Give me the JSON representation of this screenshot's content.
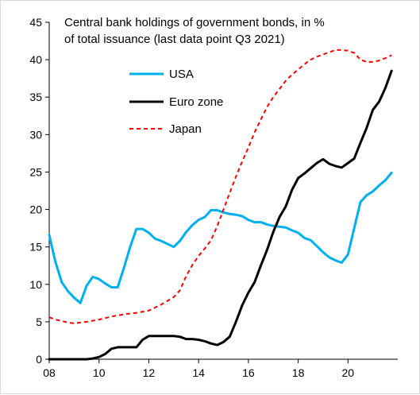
{
  "chart_data": {
    "type": "line",
    "title_lines": [
      "Central bank holdings of government bonds, in %",
      "of total issuance (last data point Q3 2021)"
    ],
    "xlim": [
      2008,
      2022
    ],
    "ylim": [
      0,
      45
    ],
    "x_ticks": [
      2008,
      2010,
      2012,
      2014,
      2016,
      2018,
      2020
    ],
    "x_tick_labels": [
      "08",
      "10",
      "12",
      "14",
      "16",
      "18",
      "20"
    ],
    "y_ticks": [
      0,
      5,
      10,
      15,
      20,
      25,
      30,
      35,
      40,
      45
    ],
    "y_tick_labels": [
      "0",
      "5",
      "10",
      "15",
      "20",
      "25",
      "30",
      "35",
      "40",
      "45"
    ],
    "grid": false,
    "legend_position": "top-left",
    "series": [
      {
        "name": "USA",
        "color": "#00b0f0",
        "style": "solid",
        "points": [
          [
            2008.0,
            16.6
          ],
          [
            2008.25,
            13.0
          ],
          [
            2008.5,
            10.3
          ],
          [
            2008.75,
            9.1
          ],
          [
            2009.0,
            8.2
          ],
          [
            2009.25,
            7.5
          ],
          [
            2009.5,
            9.8
          ],
          [
            2009.75,
            11.0
          ],
          [
            2010.0,
            10.7
          ],
          [
            2010.25,
            10.1
          ],
          [
            2010.5,
            9.6
          ],
          [
            2010.75,
            9.6
          ],
          [
            2011.0,
            12.2
          ],
          [
            2011.25,
            15.0
          ],
          [
            2011.5,
            17.4
          ],
          [
            2011.75,
            17.4
          ],
          [
            2012.0,
            16.9
          ],
          [
            2012.25,
            16.1
          ],
          [
            2012.5,
            15.8
          ],
          [
            2012.75,
            15.4
          ],
          [
            2013.0,
            15.0
          ],
          [
            2013.25,
            15.8
          ],
          [
            2013.5,
            17.0
          ],
          [
            2013.75,
            17.9
          ],
          [
            2014.0,
            18.6
          ],
          [
            2014.25,
            19.0
          ],
          [
            2014.5,
            19.9
          ],
          [
            2014.75,
            19.9
          ],
          [
            2015.0,
            19.6
          ],
          [
            2015.25,
            19.4
          ],
          [
            2015.5,
            19.3
          ],
          [
            2015.75,
            19.1
          ],
          [
            2016.0,
            18.6
          ],
          [
            2016.25,
            18.3
          ],
          [
            2016.5,
            18.3
          ],
          [
            2016.75,
            18.0
          ],
          [
            2017.0,
            17.8
          ],
          [
            2017.25,
            17.7
          ],
          [
            2017.5,
            17.6
          ],
          [
            2017.75,
            17.2
          ],
          [
            2018.0,
            16.9
          ],
          [
            2018.25,
            16.2
          ],
          [
            2018.5,
            15.9
          ],
          [
            2018.75,
            15.1
          ],
          [
            2019.0,
            14.3
          ],
          [
            2019.25,
            13.6
          ],
          [
            2019.5,
            13.2
          ],
          [
            2019.75,
            12.9
          ],
          [
            2020.0,
            14.0
          ],
          [
            2020.25,
            17.5
          ],
          [
            2020.5,
            21.0
          ],
          [
            2020.75,
            21.9
          ],
          [
            2021.0,
            22.4
          ],
          [
            2021.25,
            23.2
          ],
          [
            2021.5,
            23.9
          ],
          [
            2021.75,
            24.9
          ]
        ]
      },
      {
        "name": "Euro zone",
        "color": "#000000",
        "style": "solid",
        "points": [
          [
            2008.0,
            0.0
          ],
          [
            2008.5,
            0.0
          ],
          [
            2009.0,
            0.0
          ],
          [
            2009.5,
            0.0
          ],
          [
            2009.75,
            0.1
          ],
          [
            2010.0,
            0.3
          ],
          [
            2010.25,
            0.7
          ],
          [
            2010.5,
            1.4
          ],
          [
            2010.75,
            1.6
          ],
          [
            2011.0,
            1.6
          ],
          [
            2011.25,
            1.6
          ],
          [
            2011.5,
            1.6
          ],
          [
            2011.75,
            2.6
          ],
          [
            2012.0,
            3.1
          ],
          [
            2012.25,
            3.1
          ],
          [
            2012.5,
            3.1
          ],
          [
            2012.75,
            3.1
          ],
          [
            2013.0,
            3.1
          ],
          [
            2013.25,
            3.0
          ],
          [
            2013.5,
            2.7
          ],
          [
            2013.75,
            2.7
          ],
          [
            2014.0,
            2.6
          ],
          [
            2014.25,
            2.4
          ],
          [
            2014.5,
            2.1
          ],
          [
            2014.75,
            1.9
          ],
          [
            2015.0,
            2.3
          ],
          [
            2015.25,
            3.0
          ],
          [
            2015.5,
            5.0
          ],
          [
            2015.75,
            7.2
          ],
          [
            2016.0,
            8.9
          ],
          [
            2016.25,
            10.3
          ],
          [
            2016.5,
            12.5
          ],
          [
            2016.75,
            14.6
          ],
          [
            2017.0,
            17.0
          ],
          [
            2017.25,
            19.0
          ],
          [
            2017.5,
            20.4
          ],
          [
            2017.75,
            22.6
          ],
          [
            2018.0,
            24.2
          ],
          [
            2018.25,
            24.8
          ],
          [
            2018.5,
            25.5
          ],
          [
            2018.75,
            26.2
          ],
          [
            2019.0,
            26.7
          ],
          [
            2019.25,
            26.1
          ],
          [
            2019.5,
            25.8
          ],
          [
            2019.75,
            25.6
          ],
          [
            2020.0,
            26.2
          ],
          [
            2020.25,
            26.8
          ],
          [
            2020.5,
            28.9
          ],
          [
            2020.75,
            30.9
          ],
          [
            2021.0,
            33.3
          ],
          [
            2021.25,
            34.4
          ],
          [
            2021.5,
            36.2
          ],
          [
            2021.75,
            38.5
          ]
        ]
      },
      {
        "name": "Japan",
        "color": "#ff0000",
        "style": "dashed",
        "points": [
          [
            2008.0,
            5.6
          ],
          [
            2008.25,
            5.3
          ],
          [
            2008.5,
            5.1
          ],
          [
            2008.75,
            4.9
          ],
          [
            2009.0,
            4.8
          ],
          [
            2009.5,
            5.0
          ],
          [
            2010.0,
            5.3
          ],
          [
            2010.5,
            5.7
          ],
          [
            2011.0,
            6.0
          ],
          [
            2011.5,
            6.2
          ],
          [
            2012.0,
            6.5
          ],
          [
            2012.5,
            7.3
          ],
          [
            2013.0,
            8.3
          ],
          [
            2013.25,
            9.2
          ],
          [
            2013.5,
            11.1
          ],
          [
            2013.75,
            12.6
          ],
          [
            2014.0,
            13.8
          ],
          [
            2014.25,
            14.8
          ],
          [
            2014.5,
            15.9
          ],
          [
            2014.75,
            17.8
          ],
          [
            2015.0,
            20.0
          ],
          [
            2015.25,
            22.2
          ],
          [
            2015.5,
            24.4
          ],
          [
            2015.75,
            26.4
          ],
          [
            2016.0,
            28.3
          ],
          [
            2016.25,
            30.3
          ],
          [
            2016.5,
            32.0
          ],
          [
            2016.75,
            33.7
          ],
          [
            2017.0,
            35.0
          ],
          [
            2017.25,
            36.1
          ],
          [
            2017.5,
            37.2
          ],
          [
            2017.75,
            38.0
          ],
          [
            2018.0,
            38.7
          ],
          [
            2018.25,
            39.4
          ],
          [
            2018.5,
            40.0
          ],
          [
            2018.75,
            40.4
          ],
          [
            2019.0,
            40.7
          ],
          [
            2019.25,
            41.0
          ],
          [
            2019.5,
            41.3
          ],
          [
            2019.75,
            41.3
          ],
          [
            2020.0,
            41.2
          ],
          [
            2020.25,
            40.9
          ],
          [
            2020.5,
            40.0
          ],
          [
            2020.75,
            39.7
          ],
          [
            2021.0,
            39.7
          ],
          [
            2021.25,
            39.9
          ],
          [
            2021.5,
            40.2
          ],
          [
            2021.75,
            40.6
          ]
        ]
      }
    ]
  }
}
